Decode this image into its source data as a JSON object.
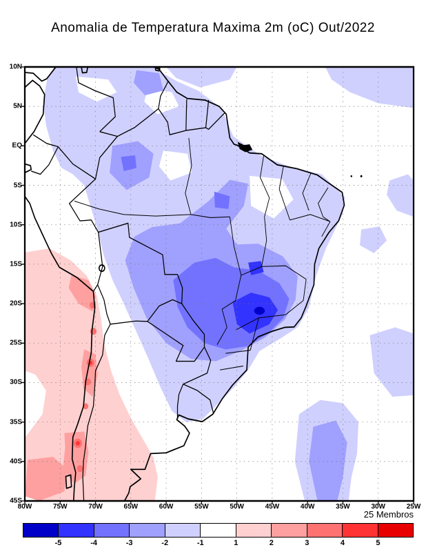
{
  "title": {
    "text": "Anomalia de Temperatura Maxima 2m (oC) Out/2022"
  },
  "footer": {
    "members_label": "25 Membros"
  },
  "axes": {
    "lat_labels": [
      "10N",
      "5N",
      "EQ",
      "5S",
      "10S",
      "15S",
      "20S",
      "25S",
      "30S",
      "35S",
      "40S",
      "45S"
    ],
    "lon_labels": [
      "80W",
      "75W",
      "70W",
      "65W",
      "60W",
      "55W",
      "50W",
      "45W",
      "40W",
      "35W",
      "30W",
      "25W"
    ]
  },
  "colorbar": {
    "tick_labels": [
      "-5",
      "-4",
      "-3",
      "-2",
      "-1",
      "1",
      "2",
      "3",
      "4",
      "5"
    ],
    "segment_colors": [
      "#0000c8",
      "#3333ff",
      "#7272ff",
      "#a0a0ff",
      "#d0d0ff",
      "#ffffff",
      "#ffd0d0",
      "#ffa0a0",
      "#ff7272",
      "#ff3333",
      "#e80000"
    ]
  },
  "chart_data": {
    "type": "heatmap",
    "title": "Anomalia de Temperatura Maxima 2m (oC) Out/2022",
    "units": "oC",
    "ensemble_label": "25 Membros",
    "lon_range": [
      "80W",
      "25W"
    ],
    "lat_range": [
      "10N",
      "45S"
    ],
    "contour_levels": [
      -5,
      -4,
      -3,
      -2,
      -1,
      1,
      2,
      3,
      4,
      5
    ],
    "grid": "dotted, 5 degree spacing",
    "legend_position": "bottom horizontal colorbar",
    "regions": [
      {
        "area": "central and southeastern Brazil (Goias, Minas Gerais, Sao Paulo)",
        "anomaly_oC": "-3 to -5"
      },
      {
        "area": "most of Brazil, Amazon basin, Bolivia, eastern Peru, Colombia, Venezuela",
        "anomaly_oC": "-1 to -3"
      },
      {
        "area": "Maranhao/Piaui corridor and parts of the Guianas",
        "anomaly_oC": "0 (white)"
      },
      {
        "area": "Chile, western Argentina and adjacent southeastern Pacific",
        "anomaly_oC": "+1 to +3"
      },
      {
        "area": "isolated spots along the Andes/Chilean coast 20S-42S",
        "anomaly_oC": "+3 to +5"
      },
      {
        "area": "southwestern Atlantic near 50W 35S-45S",
        "anomaly_oC": "-1 to -3"
      },
      {
        "area": "tropical Atlantic northeast corner (35W-25W, 10N-3N)",
        "anomaly_oC": "-1 to -2"
      }
    ]
  }
}
